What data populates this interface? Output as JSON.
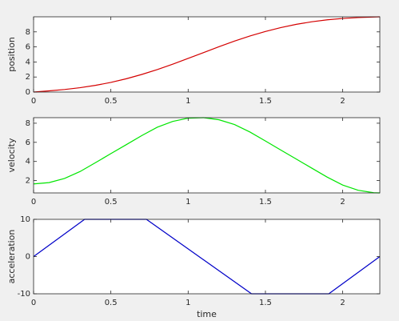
{
  "chart_data": [
    {
      "type": "line",
      "ylabel": "position",
      "x": [
        0,
        0.1,
        0.2,
        0.3,
        0.4,
        0.5,
        0.6,
        0.7,
        0.8,
        0.9,
        1,
        1.1,
        1.2,
        1.3,
        1.4,
        1.5,
        1.6,
        1.7,
        1.8,
        1.9,
        2,
        2.1,
        2.2,
        2.24
      ],
      "values": [
        0,
        0.16,
        0.34,
        0.58,
        0.89,
        1.28,
        1.77,
        2.34,
        2.99,
        3.71,
        4.47,
        5.25,
        6.03,
        6.77,
        7.45,
        8.05,
        8.57,
        9.0,
        9.34,
        9.6,
        9.78,
        9.9,
        9.97,
        10
      ],
      "color": "#d40000",
      "xlim": [
        0,
        2.24
      ],
      "ylim": [
        0,
        10
      ],
      "xticks": [
        0,
        0.5,
        1,
        1.5,
        2
      ],
      "yticks": [
        0,
        2,
        4,
        6,
        8
      ]
    },
    {
      "type": "line",
      "ylabel": "velocity",
      "x": [
        0,
        0.1,
        0.2,
        0.3,
        0.4,
        0.5,
        0.6,
        0.7,
        0.8,
        0.9,
        1,
        1.1,
        1.2,
        1.3,
        1.4,
        1.5,
        1.6,
        1.7,
        1.8,
        1.9,
        2,
        2.1,
        2.2,
        2.24
      ],
      "values": [
        1.65,
        1.79,
        2.22,
        2.94,
        3.87,
        4.82,
        5.76,
        6.71,
        7.58,
        8.19,
        8.53,
        8.58,
        8.36,
        7.86,
        7.08,
        6.14,
        5.19,
        4.25,
        3.3,
        2.36,
        1.53,
        0.99,
        0.73,
        0.71
      ],
      "color": "#00e600",
      "xlim": [
        0,
        2.24
      ],
      "ylim": [
        0.71,
        8.58
      ],
      "xticks": [
        0,
        0.5,
        1,
        1.5,
        2
      ],
      "yticks": [
        2,
        4,
        6,
        8
      ]
    },
    {
      "type": "line",
      "ylabel": "acceleration",
      "xlabel": "time",
      "x": [
        0,
        0.33,
        0.73,
        1.41,
        1.91,
        2.24
      ],
      "values": [
        0,
        10,
        10,
        -10,
        -10,
        0
      ],
      "color": "#0000c8",
      "xlim": [
        0,
        2.24
      ],
      "ylim": [
        -10,
        10
      ],
      "xticks": [
        0,
        0.5,
        1,
        1.5,
        2
      ],
      "yticks": [
        -10,
        0,
        10
      ]
    }
  ]
}
